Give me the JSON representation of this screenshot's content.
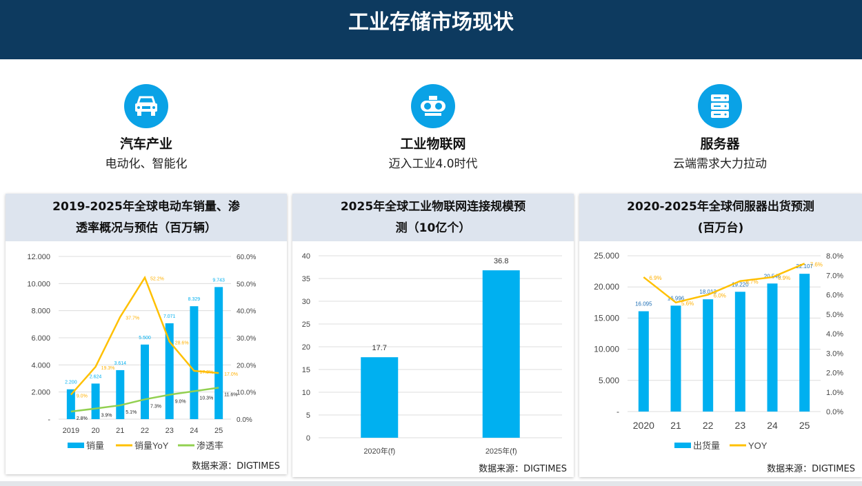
{
  "header": {
    "title": "工业存储市场现状"
  },
  "features": [
    {
      "icon": "car-icon",
      "title": "汽车产业",
      "subtitle": "电动化、智能化"
    },
    {
      "icon": "iot-device-icon",
      "title": "工业物联网",
      "subtitle": "迈入工业4.0时代"
    },
    {
      "icon": "server-icon",
      "title": "服务器",
      "subtitle": "云端需求大力拉动"
    }
  ],
  "colors": {
    "bar": "#00b0f0",
    "yoy": "#ffc000",
    "pen": "#92d050",
    "header": "#0d3a5f"
  },
  "chart_data": [
    {
      "type": "bar+line",
      "title_line1": "2019-2025年全球电动车销量、渗",
      "title_line2": "透率概况与预估（百万辆）",
      "categories": [
        "2019",
        "20",
        "21",
        "22",
        "23",
        "24",
        "25"
      ],
      "ylim": [
        0,
        12000
      ],
      "yticks": [
        "-",
        "2.000",
        "4.000",
        "6.000",
        "8.000",
        "10.000",
        "12.000"
      ],
      "y2lim": [
        0,
        60
      ],
      "y2ticks": [
        "0.0%",
        "10.0%",
        "20.0%",
        "30.0%",
        "40.0%",
        "50.0%",
        "60.0%"
      ],
      "series": [
        {
          "name": "销量",
          "kind": "bar",
          "values": [
            2200,
            2624,
            3614,
            5500,
            7071,
            8329,
            9743
          ],
          "labels": [
            "2.200",
            "2.624",
            "3.614",
            "5.500",
            "7.071",
            "8.329",
            "9.743"
          ]
        },
        {
          "name": "销量YoY",
          "kind": "line",
          "axis": "right",
          "values": [
            9.0,
            19.3,
            37.7,
            52.2,
            28.6,
            17.8,
            17.0
          ],
          "labels": [
            "9.0%",
            "19.3%",
            "37.7%",
            "52.2%",
            "28.6%",
            "17.8%",
            "17.0%"
          ]
        },
        {
          "name": "渗透率",
          "kind": "line",
          "axis": "right",
          "values": [
            2.8,
            3.9,
            5.1,
            7.3,
            9.0,
            10.3,
            11.6
          ],
          "labels": [
            "2.8%",
            "3.9%",
            "5.1%",
            "7.3%",
            "9.0%",
            "10.3%",
            "11.6%"
          ]
        }
      ],
      "source": "数据来源：DIGTIMES"
    },
    {
      "type": "bar",
      "title_line1": "2025年全球工业物联网连接规模预",
      "title_line2": "测（10亿个）",
      "categories": [
        "2020年(f)",
        "2025年(f)"
      ],
      "ylim": [
        0,
        40
      ],
      "yticks": [
        "0",
        "5",
        "10",
        "15",
        "20",
        "25",
        "30",
        "35",
        "40"
      ],
      "series": [
        {
          "name": "连接规模",
          "kind": "bar",
          "values": [
            17.7,
            36.8
          ],
          "labels": [
            "17.7",
            "36.8"
          ]
        }
      ],
      "source": "数据来源：DIGTIMES"
    },
    {
      "type": "bar+line",
      "title_line1": "2020-2025年全球伺服器出货预测",
      "title_line2": "(百万台)",
      "categories": [
        "2020",
        "21",
        "22",
        "23",
        "24",
        "25"
      ],
      "ylim": [
        0,
        25000
      ],
      "yticks": [
        "-",
        "5.000",
        "10.000",
        "15.000",
        "20.000",
        "25.000"
      ],
      "y2lim": [
        0,
        8
      ],
      "y2ticks": [
        "0.0%",
        "1.0%",
        "2.0%",
        "3.0%",
        "4.0%",
        "5.0%",
        "6.0%",
        "7.0%",
        "8.0%"
      ],
      "series": [
        {
          "name": "出货量",
          "kind": "bar",
          "values": [
            16095,
            16996,
            18013,
            19220,
            20546,
            22107
          ],
          "labels": [
            "16.095",
            "16.996",
            "18.013",
            "19.220",
            "20.546",
            "22.107"
          ]
        },
        {
          "name": "YOY",
          "kind": "line",
          "axis": "right",
          "values": [
            6.9,
            5.6,
            6.0,
            6.7,
            6.9,
            7.6
          ],
          "labels": [
            "6.9%",
            "5.6%",
            "6.0%",
            "6.7%",
            "6.9%",
            "7.6%"
          ]
        }
      ],
      "source": "数据来源：DIGTIMES"
    }
  ]
}
